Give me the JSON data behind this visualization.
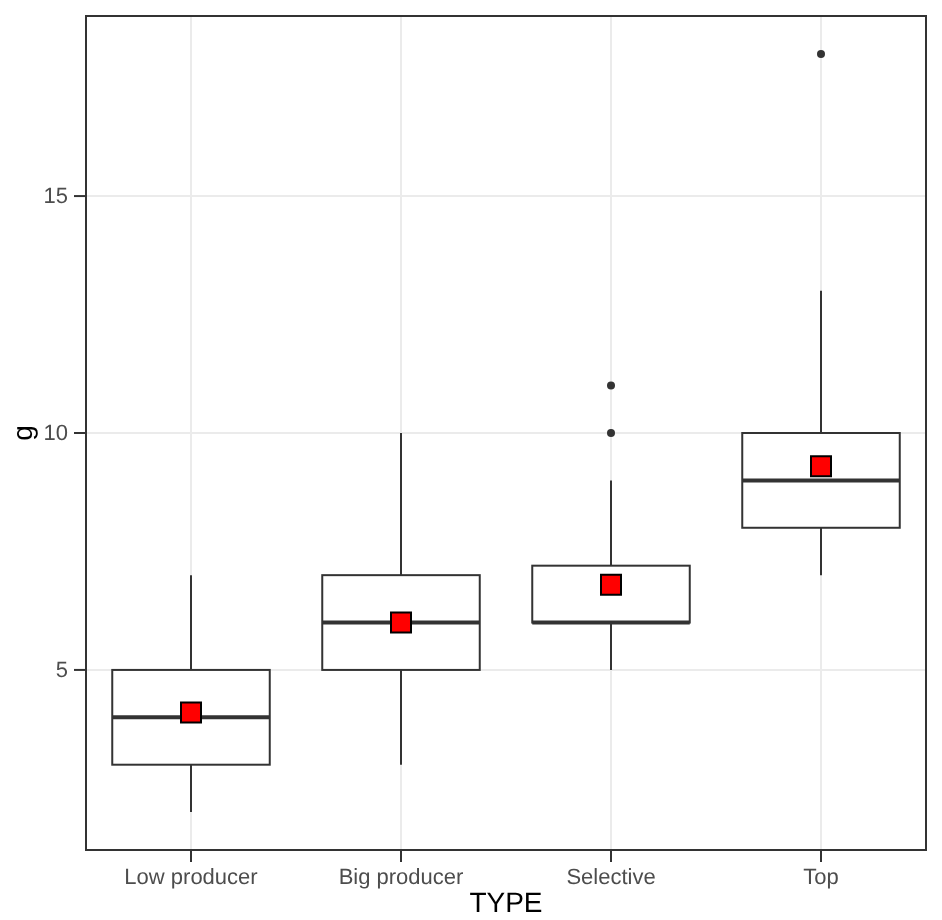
{
  "chart_data": {
    "type": "box",
    "xlabel": "TYPE",
    "ylabel": "g",
    "categories": [
      "Low producer",
      "Big producer",
      "Selective",
      "Top"
    ],
    "ylim": [
      1.2,
      18.8
    ],
    "yticks": [
      5,
      10,
      15
    ],
    "grid": true,
    "series": [
      {
        "color": "#ffffff",
        "boxes": [
          {
            "low": 2,
            "q1": 3,
            "median": 4,
            "q3": 5,
            "high": 7
          },
          {
            "low": 3,
            "q1": 5,
            "median": 6,
            "q3": 7,
            "high": 10
          },
          {
            "low": 5,
            "q1": 6,
            "median": 6,
            "q3": 7.2,
            "high": 9,
            "outliers": [
              10,
              11
            ]
          },
          {
            "low": 7,
            "q1": 8,
            "median": 9,
            "q3": 10,
            "high": 13,
            "outliers": [
              18
            ]
          }
        ]
      },
      {
        "type": "scatter",
        "color": "#ff0000",
        "marker": "square",
        "x": [
          "Low producer",
          "Big producer",
          "Selective",
          "Top"
        ],
        "values": [
          4.1,
          6.0,
          6.8,
          9.3
        ]
      }
    ]
  }
}
